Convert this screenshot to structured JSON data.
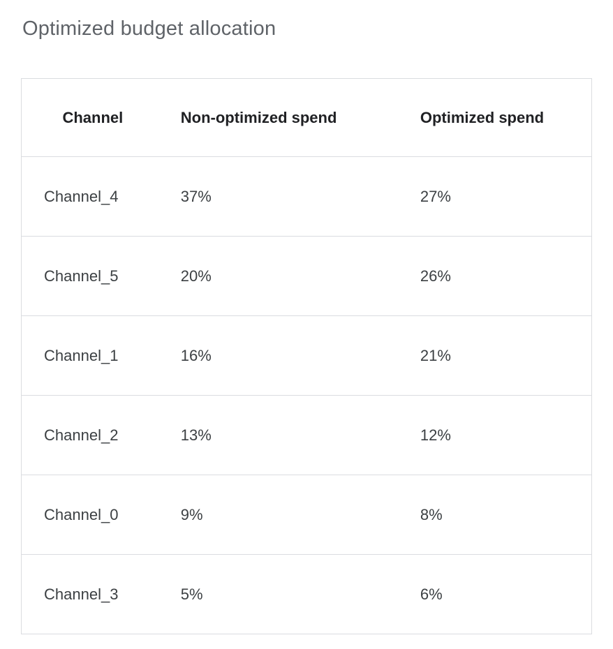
{
  "page": {
    "title": "Optimized budget allocation"
  },
  "table": {
    "columns": [
      "Channel",
      "Non-optimized spend",
      "Optimized spend"
    ],
    "rows": [
      {
        "channel": "Channel_4",
        "non_optimized": "37%",
        "optimized": "27%"
      },
      {
        "channel": "Channel_5",
        "non_optimized": "20%",
        "optimized": "26%"
      },
      {
        "channel": "Channel_1",
        "non_optimized": "16%",
        "optimized": "21%"
      },
      {
        "channel": "Channel_2",
        "non_optimized": "13%",
        "optimized": "12%"
      },
      {
        "channel": "Channel_0",
        "non_optimized": "9%",
        "optimized": "8%"
      },
      {
        "channel": "Channel_3",
        "non_optimized": "5%",
        "optimized": "6%"
      }
    ]
  },
  "chart_data": {
    "type": "table",
    "title": "Optimized budget allocation",
    "columns": [
      "Channel",
      "Non-optimized spend",
      "Optimized spend"
    ],
    "rows": [
      [
        "Channel_4",
        "37%",
        "27%"
      ],
      [
        "Channel_5",
        "20%",
        "26%"
      ],
      [
        "Channel_1",
        "16%",
        "21%"
      ],
      [
        "Channel_2",
        "13%",
        "12%"
      ],
      [
        "Channel_0",
        "9%",
        "8%"
      ],
      [
        "Channel_3",
        "5%",
        "6%"
      ]
    ],
    "non_optimized_values_pct": [
      37,
      20,
      16,
      13,
      9,
      5
    ],
    "optimized_values_pct": [
      27,
      26,
      21,
      12,
      8,
      6
    ]
  },
  "colors": {
    "title_text": "#5f6368",
    "header_text": "#202124",
    "body_text": "#3c4043",
    "border": "#dadce0",
    "background": "#ffffff"
  }
}
